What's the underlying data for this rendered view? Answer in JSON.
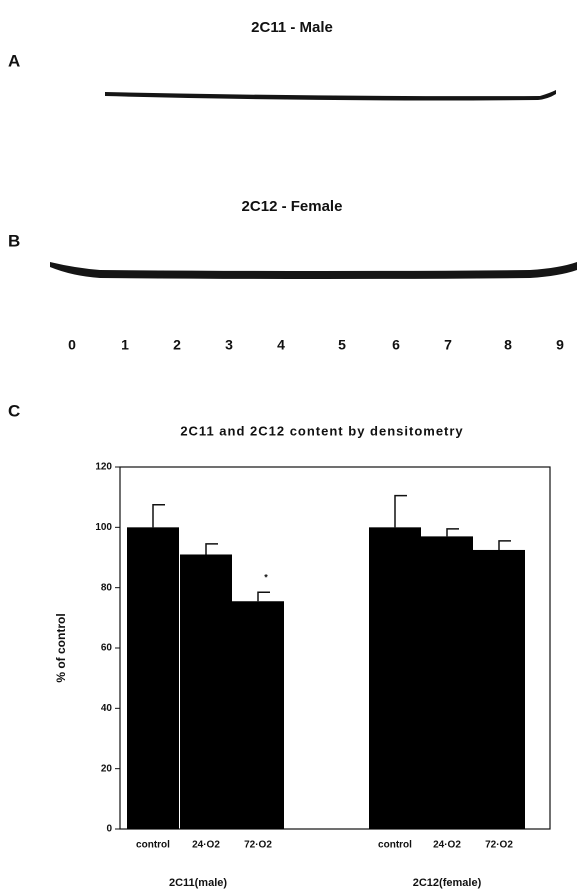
{
  "panels": {
    "a": {
      "label": "A",
      "title": "2C11 - Male"
    },
    "b": {
      "label": "B",
      "title": "2C12 - Female"
    },
    "lanes": [
      "0",
      "1",
      "2",
      "3",
      "4",
      "5",
      "6",
      "7",
      "8",
      "9"
    ],
    "c": {
      "label": "C"
    }
  },
  "chart_data": {
    "type": "bar",
    "title": "2C11 and 2C12 content by densitometry",
    "y_label": "% of control",
    "categories": [
      "control",
      "24·O2",
      "72·O2",
      "control",
      "24·O2",
      "72·O2"
    ],
    "groups": [
      "2C11(male)",
      "2C12(female)"
    ],
    "values": [
      100,
      91,
      75.5,
      100,
      97,
      92.5
    ],
    "errors": [
      7.5,
      3.5,
      3,
      10.5,
      2.5,
      3
    ],
    "annotation": "*",
    "color": "#000000",
    "ylim": [
      0,
      120
    ],
    "yticks": [
      0,
      20,
      40,
      60,
      80,
      100,
      120
    ]
  }
}
